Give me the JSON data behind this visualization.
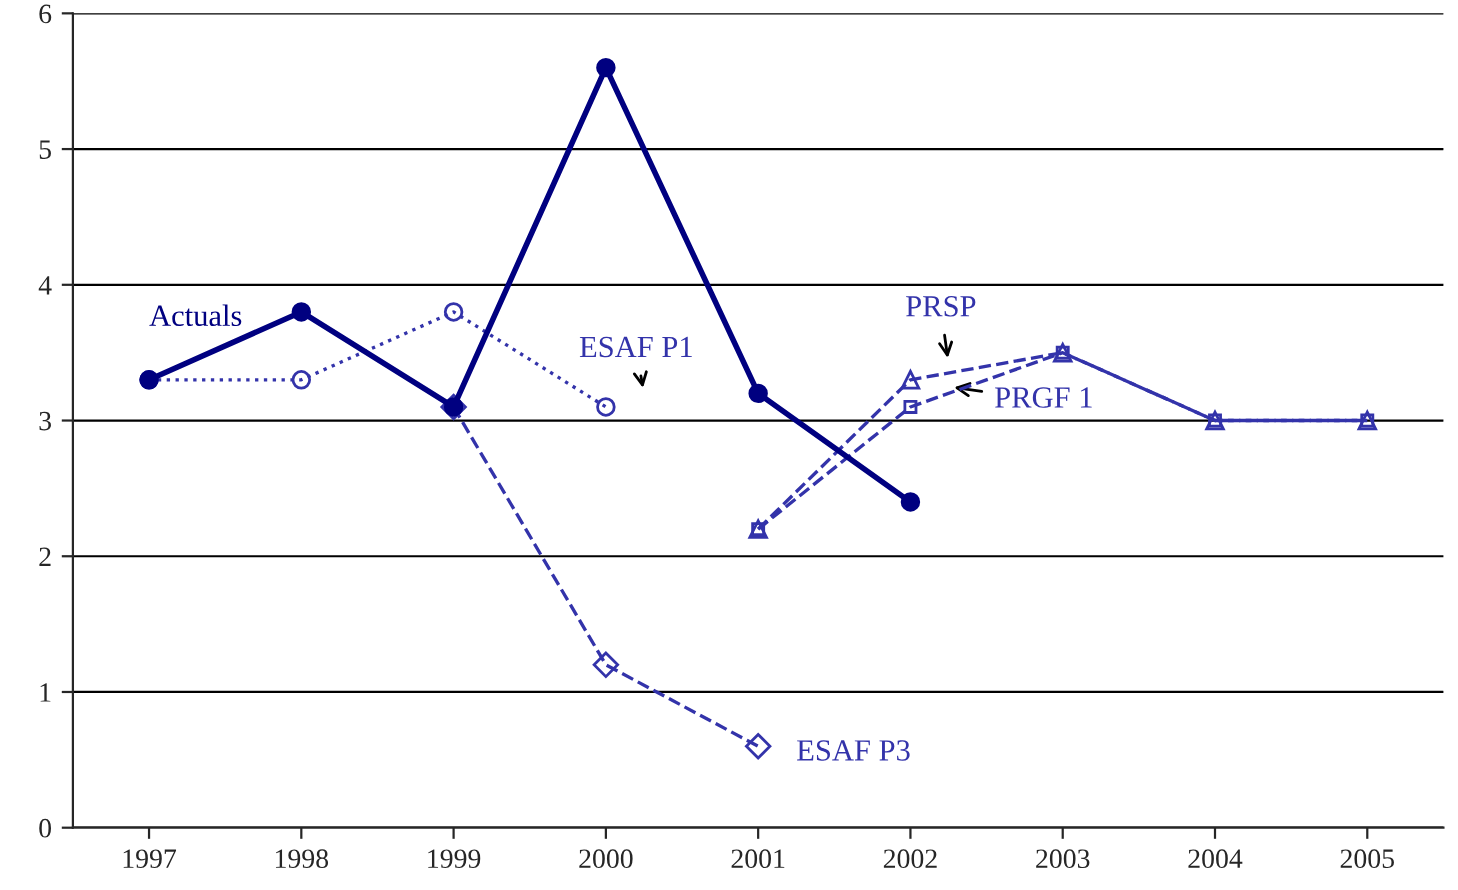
{
  "chart_data": {
    "type": "line",
    "categories": [
      "1997",
      "1998",
      "1999",
      "2000",
      "2001",
      "2002",
      "2003",
      "2004",
      "2005"
    ],
    "series": [
      {
        "name": "Actuals",
        "color": "#000080",
        "marker": "circle",
        "line_style": "solid",
        "values": [
          3.3,
          3.8,
          3.1,
          5.6,
          3.2,
          2.4,
          null,
          null,
          null
        ]
      },
      {
        "name": "ESAF P1",
        "color": "#3333aa",
        "marker": "circle",
        "line_style": "dotted",
        "values": [
          3.3,
          3.3,
          3.8,
          3.1,
          null,
          null,
          null,
          null,
          null
        ]
      },
      {
        "name": "ESAF P3",
        "color": "#3333aa",
        "marker": "diamond",
        "line_style": "dashed",
        "values": [
          null,
          null,
          3.1,
          1.2,
          0.6,
          null,
          null,
          null,
          null
        ]
      },
      {
        "name": "PRSP",
        "color": "#3333aa",
        "marker": "triangle",
        "line_style": "dashed",
        "values": [
          null,
          null,
          null,
          null,
          2.2,
          3.3,
          3.5,
          3.0,
          3.0
        ]
      },
      {
        "name": "PRGF 1",
        "color": "#3333aa",
        "marker": "square",
        "line_style": "dashed",
        "values": [
          null,
          null,
          null,
          null,
          2.2,
          3.1,
          3.5,
          3.0,
          3.0
        ]
      }
    ],
    "ylim": [
      0,
      6
    ],
    "yticks": [
      0,
      1,
      2,
      3,
      4,
      5,
      6
    ],
    "grid": "y",
    "legend": false
  }
}
